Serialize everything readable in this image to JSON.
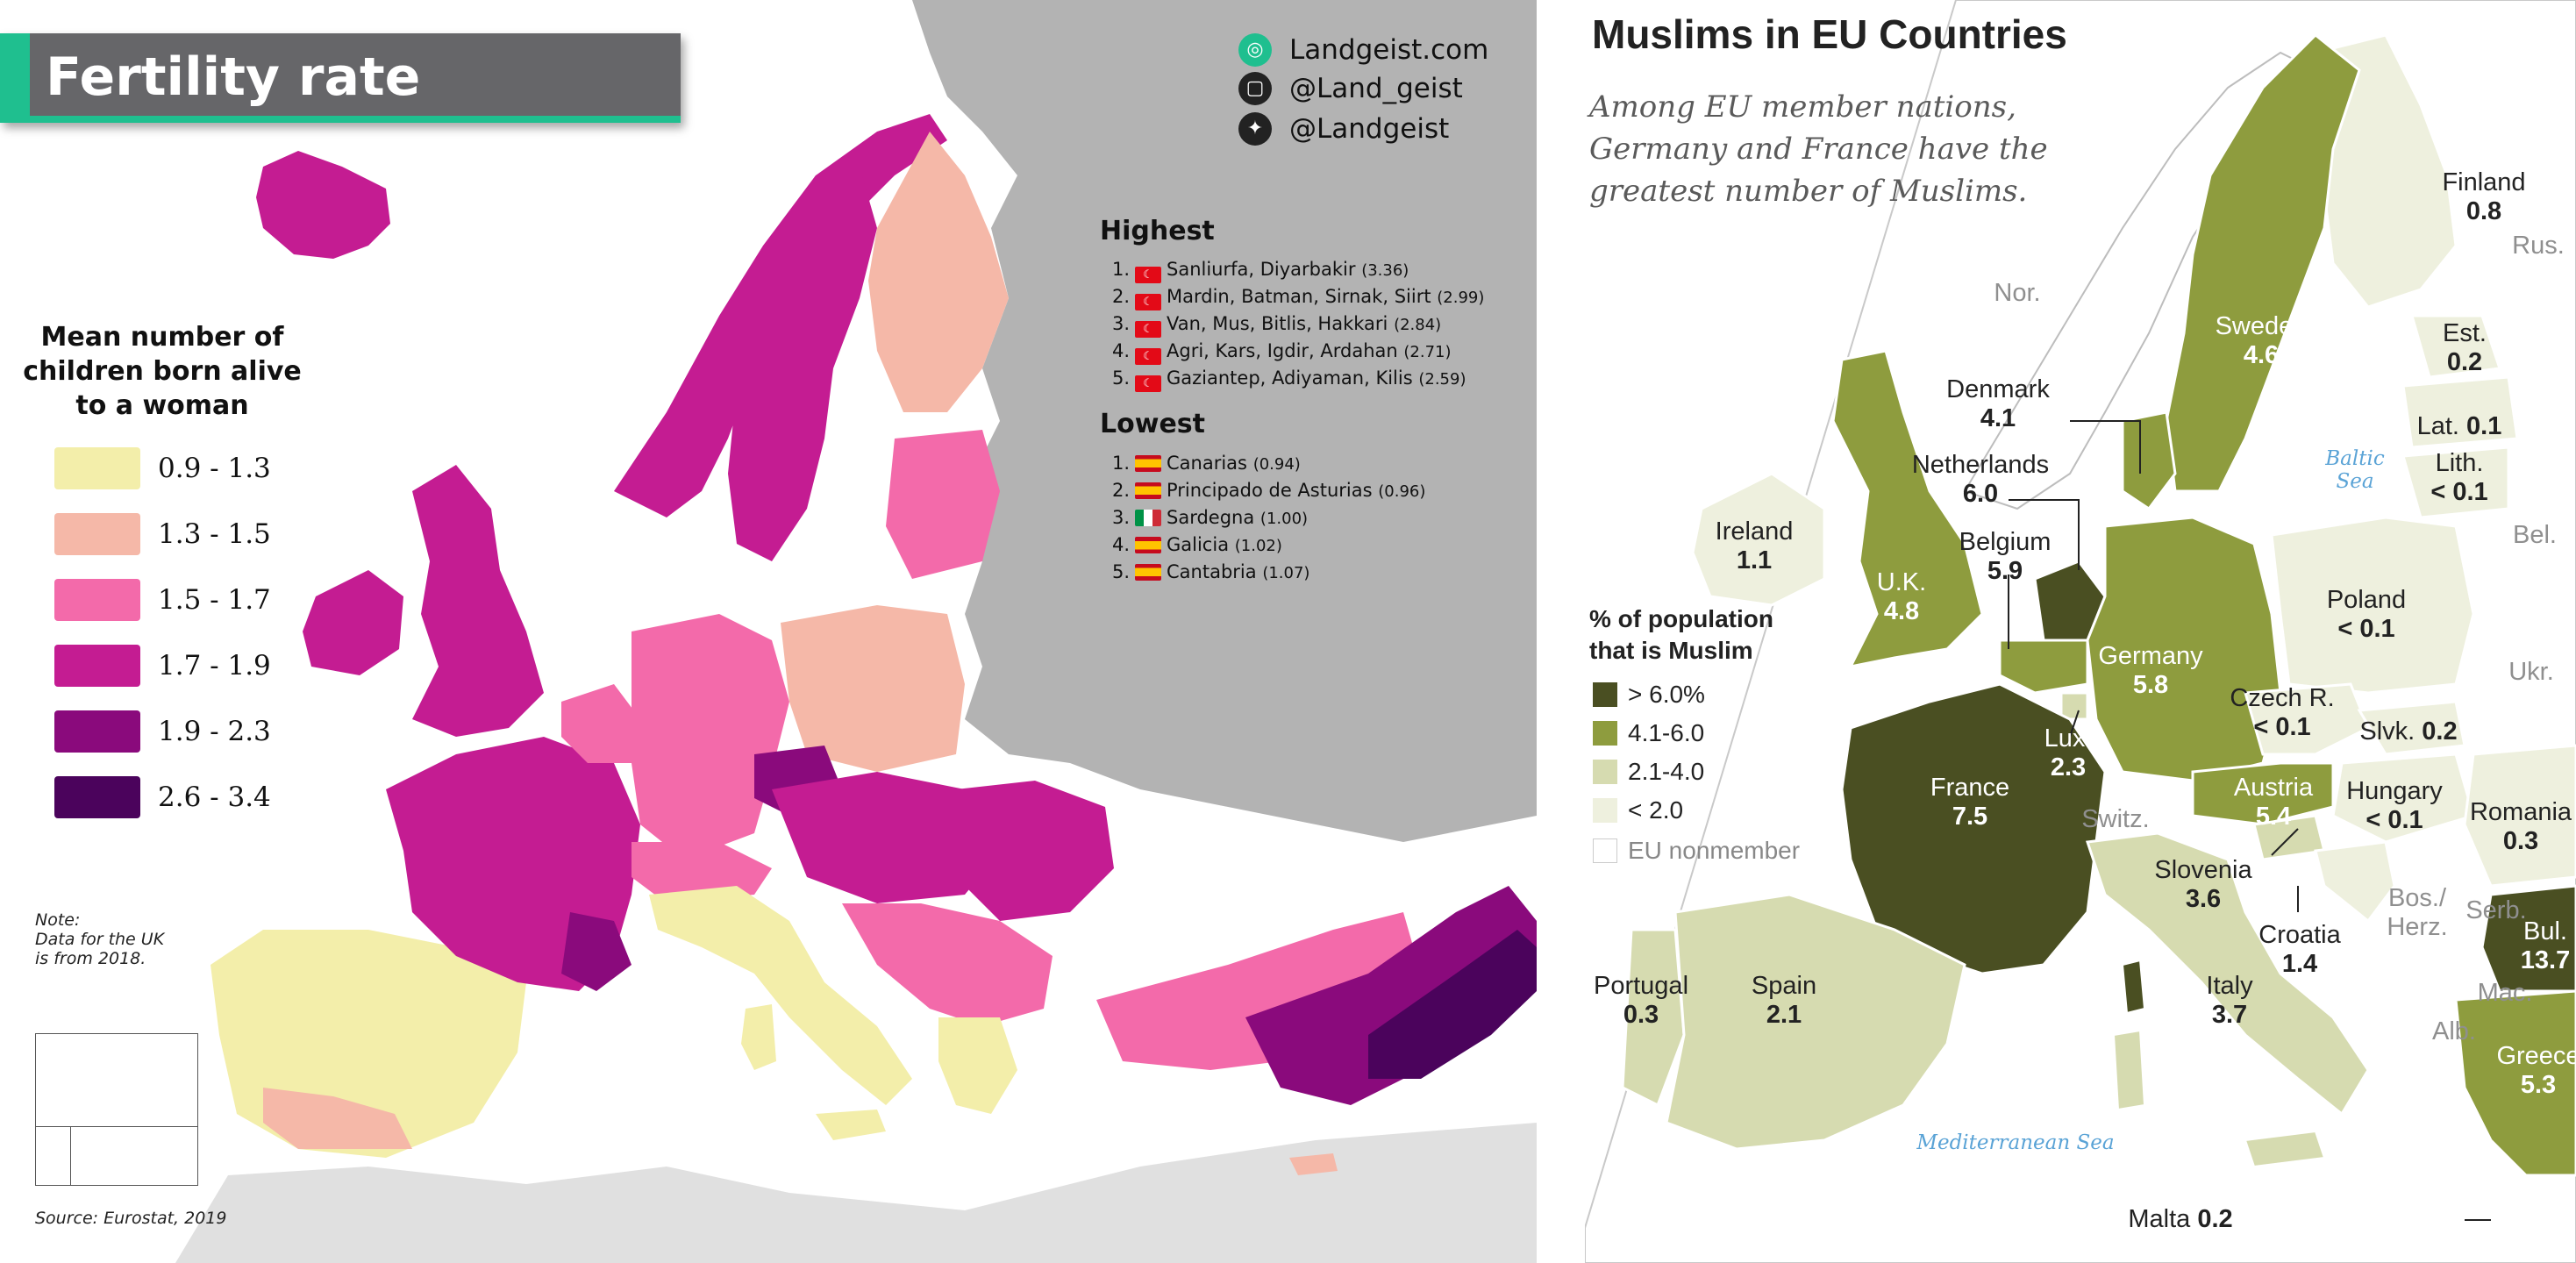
{
  "left_map": {
    "title": "Fertility rate",
    "legend": {
      "title": "Mean number of children born alive to a woman",
      "title_lines": [
        "Mean number of",
        "children born alive",
        "to a woman"
      ],
      "items": [
        {
          "label": "0.9 - 1.3",
          "color": "#f3eeaa"
        },
        {
          "label": "1.3 - 1.5",
          "color": "#f5b8a8"
        },
        {
          "label": "1.5 - 1.7",
          "color": "#f36aaa"
        },
        {
          "label": "1.7 - 1.9",
          "color": "#c41c92"
        },
        {
          "label": "1.9 - 2.3",
          "color": "#8a0a7c"
        },
        {
          "label": "2.6 - 3.4",
          "color": "#4b035c"
        }
      ]
    },
    "note_lines": [
      "Note:",
      "Data for the UK",
      "is from 2018."
    ],
    "source": "Source: Eurostat, 2019",
    "branding": [
      {
        "icon": "landgeist-globe-icon",
        "text": "Landgeist.com"
      },
      {
        "icon": "instagram-icon",
        "text": "@Land_geist"
      },
      {
        "icon": "twitter-icon",
        "text": "@Landgeist"
      }
    ],
    "highest": {
      "heading": "Highest",
      "items": [
        {
          "rank": "1.",
          "flag": "turkey-flag-icon",
          "name": "Sanliurfa, Diyarbakir",
          "value": "(3.36)"
        },
        {
          "rank": "2.",
          "flag": "turkey-flag-icon",
          "name": "Mardin, Batman, Sirnak, Siirt",
          "value": "(2.99)"
        },
        {
          "rank": "3.",
          "flag": "turkey-flag-icon",
          "name": "Van, Mus, Bitlis, Hakkari",
          "value": "(2.84)"
        },
        {
          "rank": "4.",
          "flag": "turkey-flag-icon",
          "name": "Agri, Kars, Igdir, Ardahan",
          "value": "(2.71)"
        },
        {
          "rank": "5.",
          "flag": "turkey-flag-icon",
          "name": "Gaziantep, Adiyaman, Kilis",
          "value": "(2.59)"
        }
      ]
    },
    "lowest": {
      "heading": "Lowest",
      "items": [
        {
          "rank": "1.",
          "flag": "spain-flag-icon",
          "name": "Canarias",
          "value": "(0.94)"
        },
        {
          "rank": "2.",
          "flag": "spain-flag-icon",
          "name": "Principado de Asturias",
          "value": "(0.96)"
        },
        {
          "rank": "3.",
          "flag": "italy-flag-icon",
          "name": "Sardegna",
          "value": "(1.00)"
        },
        {
          "rank": "4.",
          "flag": "spain-flag-icon",
          "name": "Galicia",
          "value": "(1.02)"
        },
        {
          "rank": "5.",
          "flag": "spain-flag-icon",
          "name": "Cantabria",
          "value": "(1.07)"
        }
      ]
    }
  },
  "right_map": {
    "title": "Muslims in EU Countries",
    "subtitle_lines": [
      "Among EU member nations,",
      "Germany and France have the",
      "greatest number of Muslims."
    ],
    "legend": {
      "title_lines": [
        "% of population",
        "that is Muslim"
      ],
      "items": [
        {
          "label": "> 6.0%",
          "color": "#4a4f22"
        },
        {
          "label": "4.1-6.0",
          "color": "#8e9c3e"
        },
        {
          "label": "2.1-4.0",
          "color": "#d6dbb0"
        },
        {
          "label": "< 2.0",
          "color": "#eef0de"
        },
        {
          "label": "EU nonmember",
          "color": "#ffffff"
        }
      ]
    },
    "countries": [
      {
        "name": "Finland",
        "value": "0.8"
      },
      {
        "name": "Sweden",
        "value": "4.6"
      },
      {
        "name": "Est.",
        "value": "0.2"
      },
      {
        "name": "Lat.",
        "value": "0.1"
      },
      {
        "name": "Lith.",
        "value": "< 0.1"
      },
      {
        "name": "Denmark",
        "value": "4.1"
      },
      {
        "name": "Netherlands",
        "value": "6.0"
      },
      {
        "name": "Belgium",
        "value": "5.9"
      },
      {
        "name": "Ireland",
        "value": "1.1"
      },
      {
        "name": "U.K.",
        "value": "4.8"
      },
      {
        "name": "Germany",
        "value": "5.8"
      },
      {
        "name": "Poland",
        "value": "< 0.1"
      },
      {
        "name": "Czech R.",
        "value": "< 0.1"
      },
      {
        "name": "Slvk.",
        "value": "0.2"
      },
      {
        "name": "Lux.",
        "value": "2.3"
      },
      {
        "name": "France",
        "value": "7.5"
      },
      {
        "name": "Austria",
        "value": "5.4"
      },
      {
        "name": "Hungary",
        "value": "< 0.1"
      },
      {
        "name": "Romania",
        "value": "0.3"
      },
      {
        "name": "Slovenia",
        "value": "3.6"
      },
      {
        "name": "Croatia",
        "value": "1.4"
      },
      {
        "name": "Bul.",
        "value": "13.7"
      },
      {
        "name": "Portugal",
        "value": "0.3"
      },
      {
        "name": "Spain",
        "value": "2.1"
      },
      {
        "name": "Italy",
        "value": "3.7"
      },
      {
        "name": "Greece",
        "value": "5.3"
      },
      {
        "name": "Malta",
        "value": "0.2"
      }
    ],
    "nonmembers": [
      "Nor.",
      "Rus.",
      "Bel.",
      "Ukr.",
      "Switz.",
      "Bos./ Herz.",
      "Serb.",
      "Mac.",
      "Alb."
    ],
    "seas": [
      "Baltic Sea",
      "Mediterranean Sea"
    ]
  }
}
